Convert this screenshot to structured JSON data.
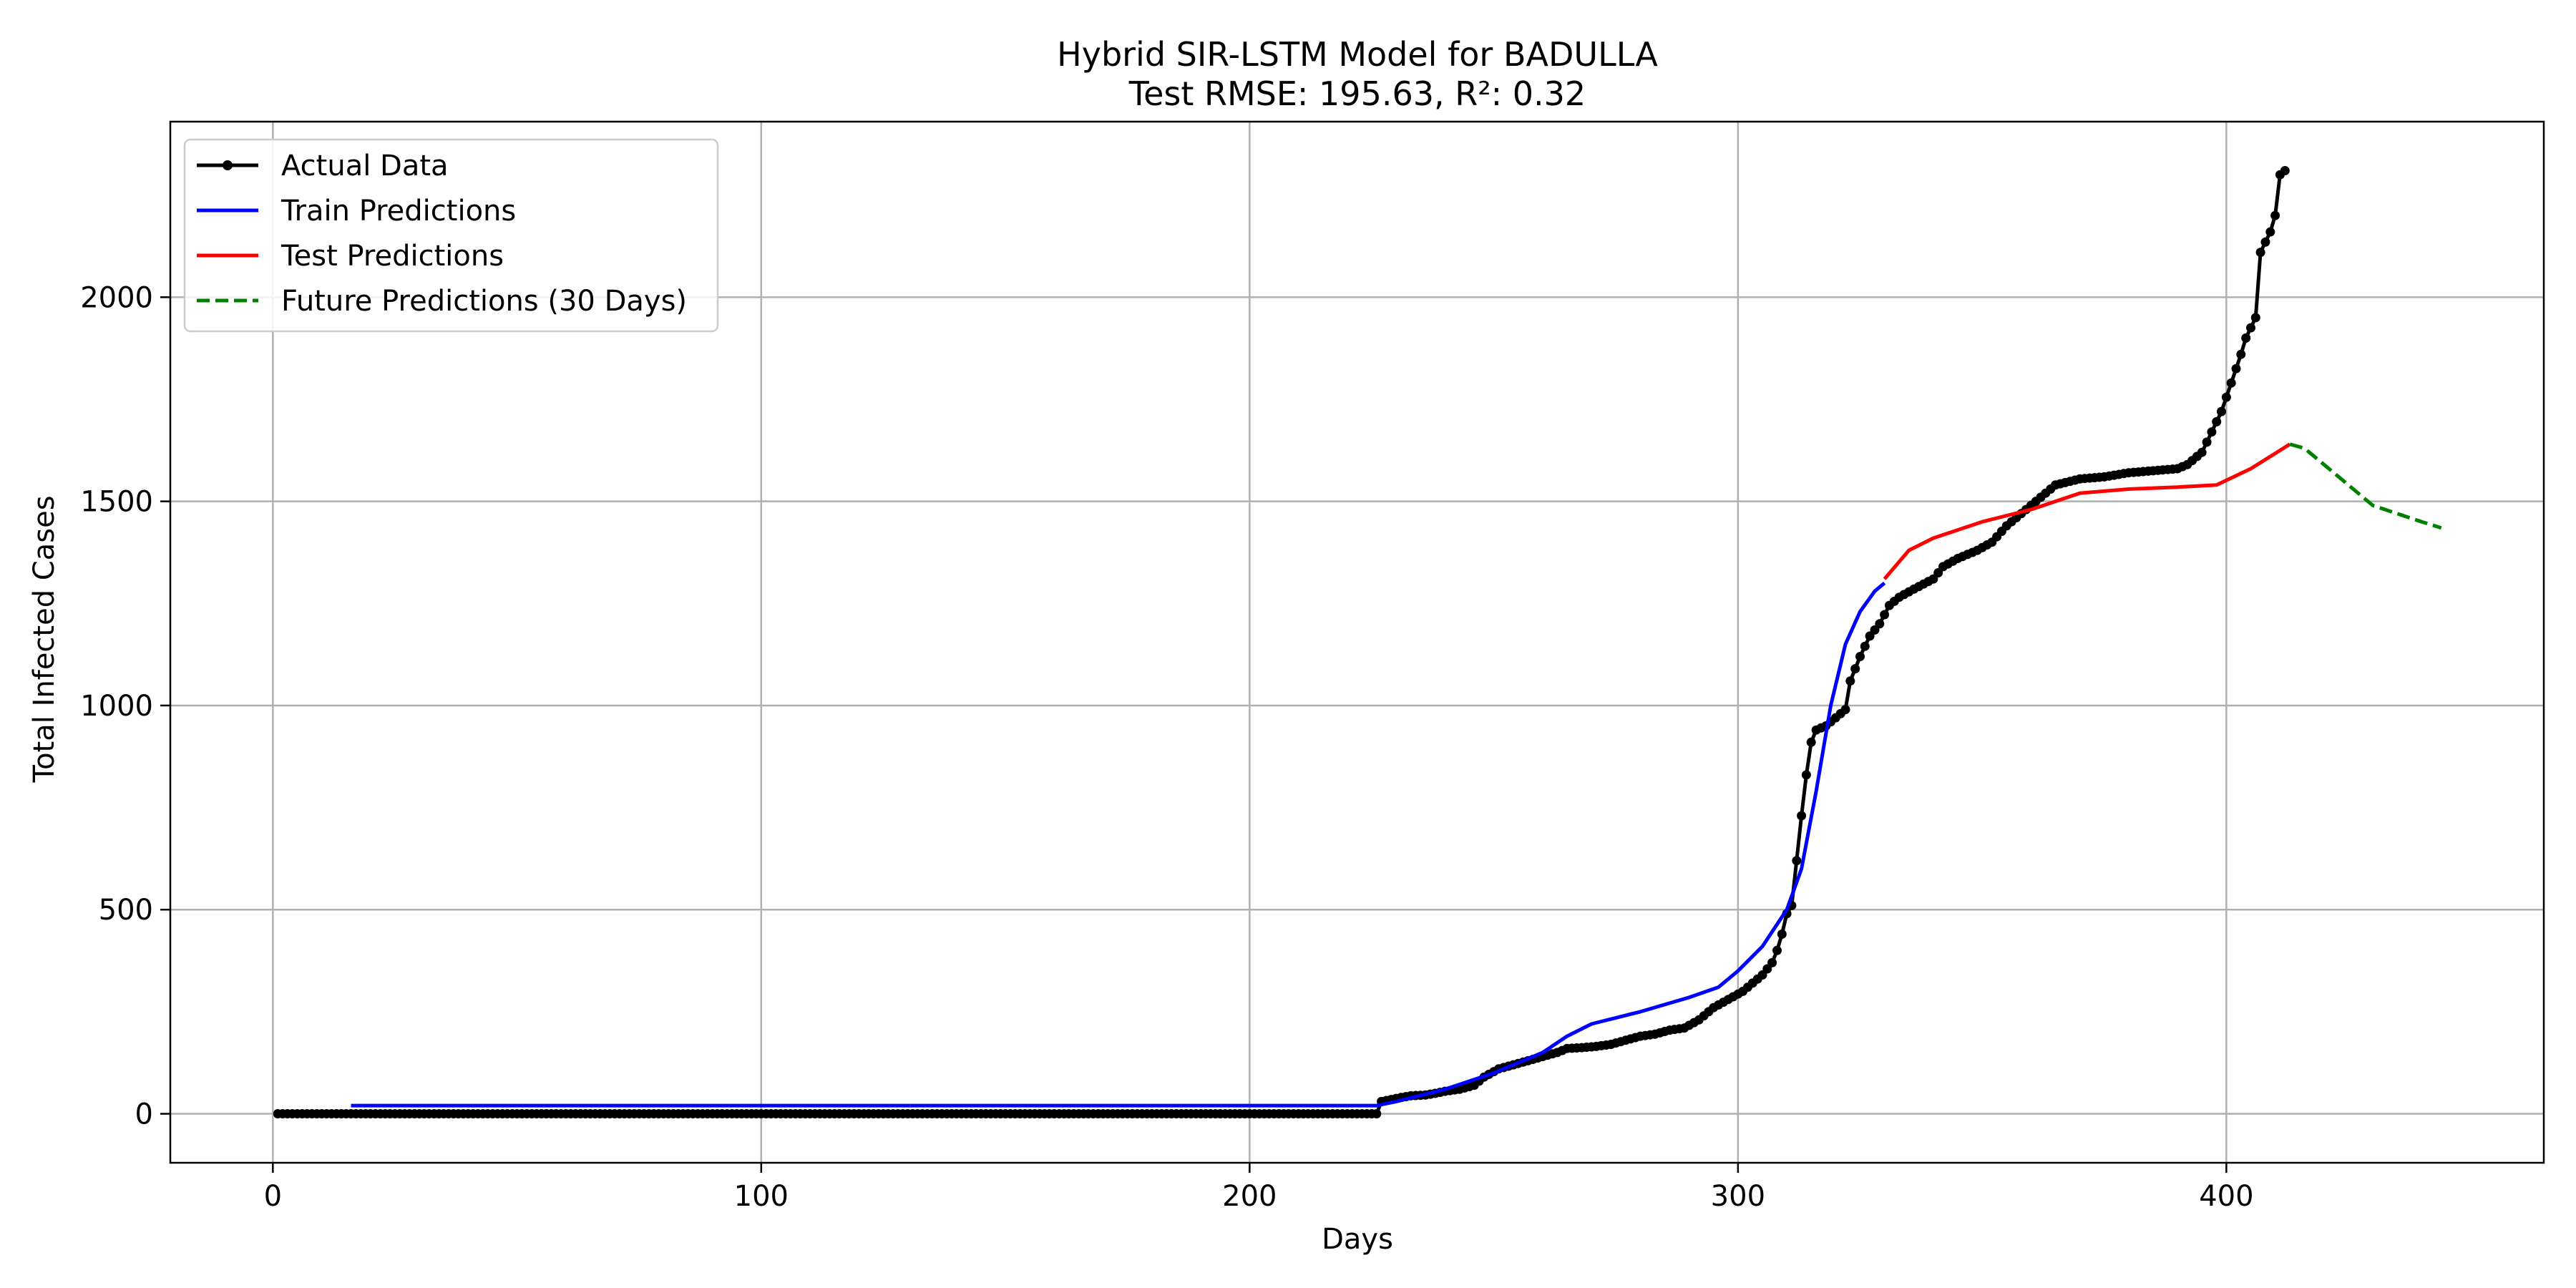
{
  "chart_data": {
    "type": "line",
    "title": "Hybrid SIR-LSTM Model for BADULLA",
    "subtitle": "Test RMSE: 195.63, R²: 0.32",
    "xlabel": "Days",
    "ylabel": "Total Infected Cases",
    "xlim": [
      -21,
      465
    ],
    "ylim": [
      -120,
      2430
    ],
    "xticks": [
      0,
      100,
      200,
      300,
      400
    ],
    "yticks": [
      0,
      500,
      1000,
      1500,
      2000
    ],
    "grid": true,
    "legend_position": "top-left",
    "series": [
      {
        "name": "Actual Data",
        "color": "#000000",
        "style": "solid",
        "marker": "dot",
        "daily_range": [
          1,
          412
        ],
        "points": [
          [
            1,
            0
          ],
          [
            226,
            0
          ],
          [
            227,
            30
          ],
          [
            229,
            35
          ],
          [
            231,
            40
          ],
          [
            233,
            44
          ],
          [
            236,
            46
          ],
          [
            238,
            50
          ],
          [
            240,
            55
          ],
          [
            243,
            60
          ],
          [
            246,
            70
          ],
          [
            248,
            90
          ],
          [
            251,
            110
          ],
          [
            254,
            120
          ],
          [
            257,
            130
          ],
          [
            260,
            140
          ],
          [
            263,
            150
          ],
          [
            265,
            160
          ],
          [
            268,
            162
          ],
          [
            271,
            165
          ],
          [
            274,
            170
          ],
          [
            277,
            180
          ],
          [
            280,
            190
          ],
          [
            283,
            195
          ],
          [
            286,
            205
          ],
          [
            289,
            210
          ],
          [
            292,
            230
          ],
          [
            295,
            260
          ],
          [
            298,
            280
          ],
          [
            301,
            300
          ],
          [
            303,
            320
          ],
          [
            305,
            340
          ],
          [
            307,
            370
          ],
          [
            308,
            400
          ],
          [
            309,
            440
          ],
          [
            310,
            490
          ],
          [
            311,
            510
          ],
          [
            312,
            620
          ],
          [
            313,
            730
          ],
          [
            314,
            830
          ],
          [
            315,
            910
          ],
          [
            316,
            940
          ],
          [
            318,
            950
          ],
          [
            320,
            970
          ],
          [
            322,
            990
          ],
          [
            323,
            1060
          ],
          [
            325,
            1120
          ],
          [
            327,
            1170
          ],
          [
            329,
            1200
          ],
          [
            331,
            1245
          ],
          [
            333,
            1265
          ],
          [
            336,
            1285
          ],
          [
            340,
            1310
          ],
          [
            342,
            1340
          ],
          [
            345,
            1360
          ],
          [
            349,
            1380
          ],
          [
            352,
            1400
          ],
          [
            355,
            1440
          ],
          [
            359,
            1480
          ],
          [
            362,
            1510
          ],
          [
            365,
            1540
          ],
          [
            370,
            1555
          ],
          [
            375,
            1560
          ],
          [
            380,
            1570
          ],
          [
            385,
            1575
          ],
          [
            390,
            1580
          ],
          [
            392,
            1590
          ],
          [
            395,
            1620
          ],
          [
            397,
            1670
          ],
          [
            399,
            1720
          ],
          [
            401,
            1790
          ],
          [
            403,
            1860
          ],
          [
            404,
            1900
          ],
          [
            406,
            1950
          ],
          [
            407,
            2110
          ],
          [
            409,
            2160
          ],
          [
            410,
            2200
          ],
          [
            411,
            2300
          ],
          [
            412,
            2310
          ]
        ]
      },
      {
        "name": "Train Predictions",
        "color": "#0000ff",
        "style": "solid",
        "points": [
          [
            16,
            20
          ],
          [
            226,
            20
          ],
          [
            230,
            30
          ],
          [
            240,
            60
          ],
          [
            250,
            100
          ],
          [
            260,
            150
          ],
          [
            265,
            190
          ],
          [
            270,
            220
          ],
          [
            280,
            250
          ],
          [
            290,
            285
          ],
          [
            296,
            310
          ],
          [
            300,
            350
          ],
          [
            305,
            410
          ],
          [
            310,
            500
          ],
          [
            313,
            600
          ],
          [
            316,
            790
          ],
          [
            319,
            1000
          ],
          [
            322,
            1150
          ],
          [
            325,
            1230
          ],
          [
            328,
            1280
          ],
          [
            330,
            1300
          ]
        ]
      },
      {
        "name": "Test Predictions",
        "color": "#ff0000",
        "style": "solid",
        "points": [
          [
            330,
            1310
          ],
          [
            335,
            1380
          ],
          [
            340,
            1410
          ],
          [
            350,
            1450
          ],
          [
            360,
            1480
          ],
          [
            370,
            1520
          ],
          [
            380,
            1530
          ],
          [
            390,
            1535
          ],
          [
            398,
            1540
          ],
          [
            405,
            1580
          ],
          [
            413,
            1640
          ]
        ]
      },
      {
        "name": "Future Predictions (30 Days)",
        "color": "#008000",
        "style": "dashed",
        "points": [
          [
            413,
            1640
          ],
          [
            416,
            1630
          ],
          [
            420,
            1590
          ],
          [
            425,
            1540
          ],
          [
            430,
            1490
          ],
          [
            435,
            1470
          ],
          [
            440,
            1450
          ],
          [
            444,
            1435
          ]
        ]
      }
    ]
  }
}
